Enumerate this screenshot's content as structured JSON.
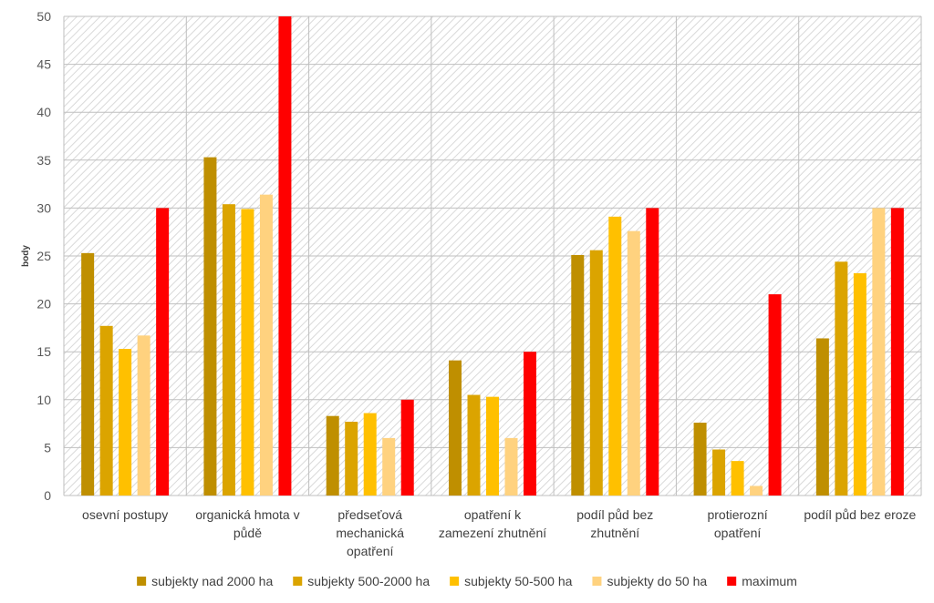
{
  "chart_data": {
    "type": "bar",
    "title": "",
    "xlabel": "",
    "ylabel": "body",
    "ylim": [
      0,
      50
    ],
    "ytick_step": 5,
    "grid": true,
    "legend_position": "bottom",
    "categories": [
      [
        "osevní postupy"
      ],
      [
        "organická hmota v",
        "půdě"
      ],
      [
        "předseťová",
        "mechanická",
        "opatření"
      ],
      [
        "opatření k",
        "zamezení zhutnění"
      ],
      [
        "podíl půd bez",
        "zhutnění"
      ],
      [
        "protierozní",
        "opatření"
      ],
      [
        "podíl půd bez eroze"
      ]
    ],
    "series": [
      {
        "name": "subjekty nad 2000 ha",
        "color": "#BF8F00",
        "values": [
          25.3,
          35.3,
          8.3,
          14.1,
          25.1,
          7.6,
          16.4
        ]
      },
      {
        "name": "subjekty 500-2000 ha",
        "color": "#DBA400",
        "values": [
          17.7,
          30.4,
          7.7,
          10.5,
          25.6,
          4.8,
          24.4
        ]
      },
      {
        "name": "subjekty 50-500 ha",
        "color": "#FFC000",
        "values": [
          15.3,
          29.9,
          8.6,
          10.3,
          29.1,
          3.6,
          23.2
        ]
      },
      {
        "name": "subjekty do 50 ha",
        "color": "#FFD27F",
        "values": [
          16.7,
          31.4,
          6.0,
          6.0,
          27.6,
          1.0,
          30.0
        ]
      },
      {
        "name": "maximum",
        "color": "#FF0000",
        "values": [
          30,
          50,
          10,
          15,
          30,
          21,
          30
        ]
      }
    ]
  }
}
